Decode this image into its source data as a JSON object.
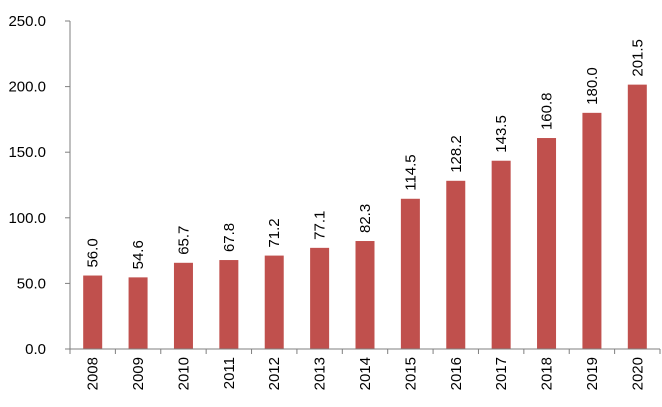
{
  "chart_data": {
    "type": "bar",
    "categories": [
      "2008",
      "2009",
      "2010",
      "2011",
      "2012",
      "2013",
      "2014",
      "2015",
      "2016",
      "2017",
      "2018",
      "2019",
      "2020"
    ],
    "values": [
      56.0,
      54.6,
      65.7,
      67.8,
      71.2,
      77.1,
      82.3,
      114.5,
      128.2,
      143.5,
      160.8,
      180.0,
      201.5
    ],
    "value_labels": [
      "56.0",
      "54.6",
      "65.7",
      "67.8",
      "71.2",
      "77.1",
      "82.3",
      "114.5",
      "128.2",
      "143.5",
      "160.8",
      "180.0",
      "201.5"
    ],
    "y_ticks": [
      "0.0",
      "50.0",
      "100.0",
      "150.0",
      "200.0",
      "250.0"
    ],
    "title": "",
    "xlabel": "",
    "ylabel": "",
    "ylim": [
      0,
      250
    ],
    "grid": false,
    "legend": "none",
    "bar_color": "#c0504d"
  }
}
